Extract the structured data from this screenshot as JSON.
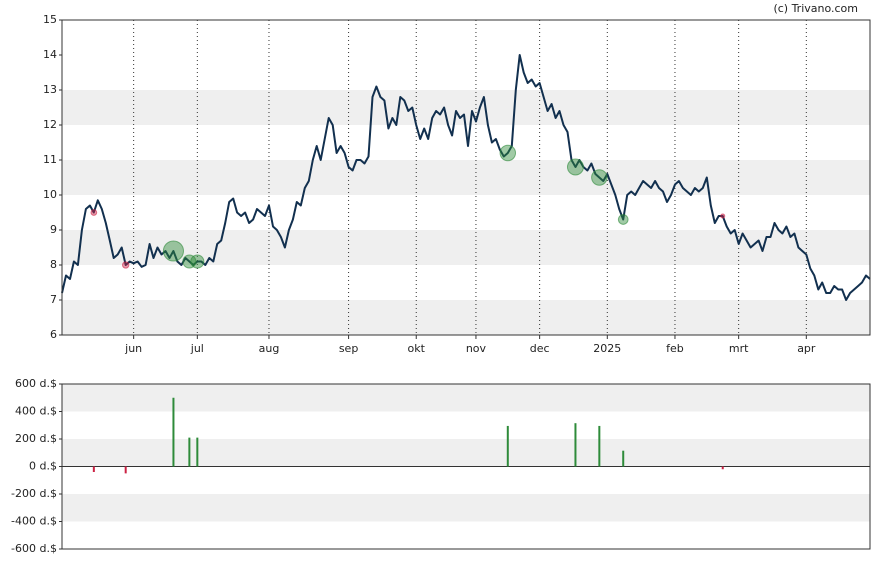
{
  "attribution": "(c) Trivano.com",
  "chart_data": [
    {
      "type": "line",
      "color": "#12304f",
      "values": [
        7.2,
        7.7,
        7.6,
        8.1,
        8.0,
        9.0,
        9.6,
        9.7,
        9.5,
        9.85,
        9.6,
        9.2,
        8.7,
        8.2,
        8.3,
        8.5,
        8.0,
        8.1,
        8.05,
        8.1,
        7.95,
        8.0,
        8.6,
        8.2,
        8.5,
        8.3,
        8.4,
        8.2,
        8.4,
        8.1,
        8.0,
        8.2,
        8.1,
        8.0,
        8.1,
        8.1,
        8.0,
        8.2,
        8.1,
        8.6,
        8.7,
        9.2,
        9.8,
        9.9,
        9.5,
        9.4,
        9.5,
        9.2,
        9.3,
        9.6,
        9.5,
        9.4,
        9.7,
        9.1,
        9.0,
        8.8,
        8.5,
        9.0,
        9.3,
        9.8,
        9.7,
        10.2,
        10.4,
        11.0,
        11.4,
        11.0,
        11.6,
        12.2,
        12.0,
        11.2,
        11.4,
        11.2,
        10.8,
        10.7,
        11.0,
        11.0,
        10.9,
        11.1,
        12.8,
        13.1,
        12.8,
        12.7,
        11.9,
        12.2,
        12.0,
        12.8,
        12.7,
        12.4,
        12.5,
        12.0,
        11.6,
        11.9,
        11.6,
        12.2,
        12.4,
        12.3,
        12.5,
        12.0,
        11.7,
        12.4,
        12.2,
        12.3,
        11.4,
        12.4,
        12.1,
        12.5,
        12.8,
        12.0,
        11.5,
        11.6,
        11.3,
        11.1,
        11.2,
        11.4,
        13.0,
        14.0,
        13.5,
        13.2,
        13.3,
        13.1,
        13.2,
        12.8,
        12.4,
        12.6,
        12.2,
        12.4,
        12.0,
        11.8,
        11.0,
        10.8,
        11.0,
        10.8,
        10.7,
        10.9,
        10.6,
        10.5,
        10.4,
        10.6,
        10.3,
        10.0,
        9.6,
        9.3,
        10.0,
        10.1,
        10.0,
        10.2,
        10.4,
        10.3,
        10.2,
        10.4,
        10.2,
        10.1,
        9.8,
        10.0,
        10.3,
        10.4,
        10.2,
        10.1,
        10.0,
        10.2,
        10.1,
        10.2,
        10.5,
        9.7,
        9.2,
        9.4,
        9.4,
        9.1,
        8.9,
        9.0,
        8.6,
        8.9,
        8.7,
        8.5,
        8.6,
        8.7,
        8.4,
        8.8,
        8.8,
        9.2,
        9.0,
        8.9,
        9.1,
        8.8,
        8.9,
        8.5,
        8.4,
        8.3,
        7.9,
        7.7,
        7.3,
        7.5,
        7.2,
        7.2,
        7.4,
        7.3,
        7.3,
        7.0,
        7.2,
        7.3,
        7.4,
        7.5,
        7.7,
        7.6
      ],
      "xlim": [
        0,
        203
      ],
      "xticks": [
        {
          "value": 18,
          "label": "jun"
        },
        {
          "value": 34,
          "label": "jul"
        },
        {
          "value": 52,
          "label": "aug"
        },
        {
          "value": 72,
          "label": "sep"
        },
        {
          "value": 89,
          "label": "okt"
        },
        {
          "value": 104,
          "label": "nov"
        },
        {
          "value": 120,
          "label": "dec"
        },
        {
          "value": 137,
          "label": "2025"
        },
        {
          "value": 154,
          "label": "feb"
        },
        {
          "value": 170,
          "label": "mrt"
        },
        {
          "value": 187,
          "label": "apr"
        }
      ],
      "ylim": [
        6,
        15
      ],
      "yticks": [
        6,
        7,
        8,
        9,
        10,
        11,
        12,
        13,
        14,
        15
      ],
      "grid": true
    },
    {
      "type": "bar",
      "color": "#2e8b3a",
      "negative_color": "#cc2244",
      "x": [
        8,
        16,
        28,
        32,
        34,
        112,
        129,
        135,
        141,
        166
      ],
      "values": [
        -40,
        -50,
        500,
        210,
        210,
        295,
        315,
        295,
        115,
        -20
      ],
      "xlim": [
        0,
        203
      ],
      "ylim": [
        -600,
        600
      ],
      "yticks": [
        {
          "value": 600,
          "label": "600 d.$"
        },
        {
          "value": 400,
          "label": "400 d.$"
        },
        {
          "value": 200,
          "label": "200 d.$"
        },
        {
          "value": 0,
          "label": "0 d.$"
        },
        {
          "value": -200,
          "label": "-200 d.$"
        },
        {
          "value": -400,
          "label": "-400 d.$"
        },
        {
          "value": -600,
          "label": "-600 d.$"
        }
      ],
      "grid": true
    }
  ]
}
